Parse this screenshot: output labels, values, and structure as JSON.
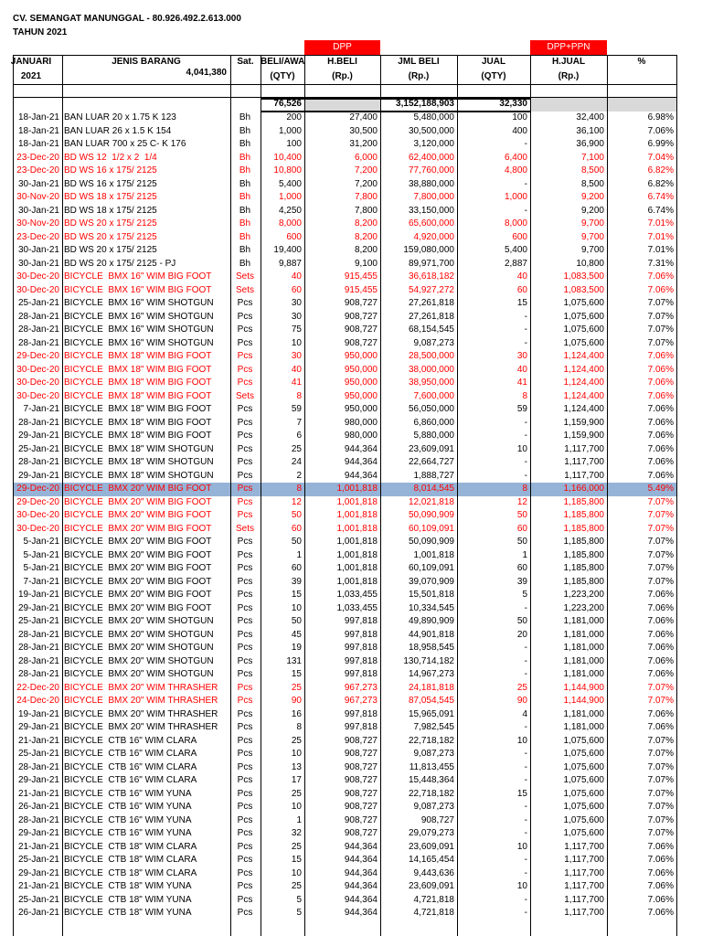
{
  "header": {
    "title": "CV. SEMANGAT MANUNGGAL - 80.926.492.2.613.000",
    "subtitle": "TAHUN 2021"
  },
  "table": {
    "group_labels": [
      {
        "text": "DPP",
        "color": "#ff0000"
      },
      {
        "text": "DPP+PPN",
        "color": "#ff0000"
      }
    ],
    "columns": [
      [
        "JANUARI",
        "2021"
      ],
      [
        "JENIS BARANG"
      ],
      [
        "Sat."
      ],
      [
        "BELI/AWAL",
        "(QTY)"
      ],
      [
        "H.BELI",
        "(Rp.)"
      ],
      [
        "JML BELI",
        "(Rp.)"
      ],
      [
        "JUAL",
        "(QTY)"
      ],
      [
        "H.JUAL",
        "(Rp.)"
      ],
      [
        "%"
      ]
    ],
    "header_note": "4,041,380",
    "totals": {
      "qty_buy": "76,526",
      "total_buy": "3,152,188,903",
      "qty_sell": "32,330"
    },
    "highlight_color": "#95b3d7",
    "rows": [
      {
        "cells": [
          "18-Jan-21",
          "BAN LUAR 20 x 1.75 K 123",
          "Bh",
          "200",
          "27,400",
          "5,480,000",
          "100",
          "32,400",
          "6.98%"
        ]
      },
      {
        "cells": [
          "18-Jan-21",
          "BAN LUAR 26 x 1.5 K 154",
          "Bh",
          "1,000",
          "30,500",
          "30,500,000",
          "400",
          "36,100",
          "7.06%"
        ]
      },
      {
        "cells": [
          "18-Jan-21",
          "BAN LUAR 700 x 25 C- K 176",
          "Bh",
          "100",
          "31,200",
          "3,120,000",
          "-",
          "36,900",
          "6.99%"
        ]
      },
      {
        "cells": [
          "23-Dec-20",
          "BD WS 12  1/2 x 2  1/4",
          "Bh",
          "10,400",
          "6,000",
          "62,400,000",
          "6,400",
          "7,100",
          "7.04%"
        ],
        "color": "#ff0000"
      },
      {
        "cells": [
          "23-Dec-20",
          "BD WS 16 x 175/ 2125",
          "Bh",
          "10,800",
          "7,200",
          "77,760,000",
          "4,800",
          "8,500",
          "6.82%"
        ],
        "color": "#ff0000"
      },
      {
        "cells": [
          "30-Jan-21",
          "BD WS 16 x 175/ 2125",
          "Bh",
          "5,400",
          "7,200",
          "38,880,000",
          "-",
          "8,500",
          "6.82%"
        ]
      },
      {
        "cells": [
          "30-Nov-20",
          "BD WS 18 x 175/ 2125",
          "Bh",
          "1,000",
          "7,800",
          "7,800,000",
          "1,000",
          "9,200",
          "6.74%"
        ],
        "color": "#ff0000"
      },
      {
        "cells": [
          "30-Jan-21",
          "BD WS 18 x 175/ 2125",
          "Bh",
          "4,250",
          "7,800",
          "33,150,000",
          "-",
          "9,200",
          "6.74%"
        ]
      },
      {
        "cells": [
          "30-Nov-20",
          "BD WS 20 x 175/ 2125",
          "Bh",
          "8,000",
          "8,200",
          "65,600,000",
          "8,000",
          "9,700",
          "7.01%"
        ],
        "color": "#ff0000"
      },
      {
        "cells": [
          "23-Dec-20",
          "BD WS 20 x 175/ 2125",
          "Bh",
          "600",
          "8,200",
          "4,920,000",
          "600",
          "9,700",
          "7.01%"
        ],
        "color": "#ff0000"
      },
      {
        "cells": [
          "30-Jan-21",
          "BD WS 20 x 175/ 2125",
          "Bh",
          "19,400",
          "8,200",
          "159,080,000",
          "5,400",
          "9,700",
          "7.01%"
        ]
      },
      {
        "cells": [
          "30-Jan-21",
          "BD WS 20 x 175/ 2125 - PJ",
          "Bh",
          "9,887",
          "9,100",
          "89,971,700",
          "2,887",
          "10,800",
          "7.31%"
        ]
      },
      {
        "cells": [
          "30-Dec-20",
          "BICYCLE  BMX 16\" WIM BIG FOOT",
          "Sets",
          "40",
          "915,455",
          "36,618,182",
          "40",
          "1,083,500",
          "7.06%"
        ],
        "color": "#ff0000"
      },
      {
        "cells": [
          "30-Dec-20",
          "BICYCLE  BMX 16\" WIM BIG FOOT",
          "Sets",
          "60",
          "915,455",
          "54,927,272",
          "60",
          "1,083,500",
          "7.06%"
        ],
        "color": "#ff0000"
      },
      {
        "cells": [
          "25-Jan-21",
          "BICYCLE  BMX 16\" WIM SHOTGUN",
          "Pcs",
          "30",
          "908,727",
          "27,261,818",
          "15",
          "1,075,600",
          "7.07%"
        ]
      },
      {
        "cells": [
          "28-Jan-21",
          "BICYCLE  BMX 16\" WIM SHOTGUN",
          "Pcs",
          "30",
          "908,727",
          "27,261,818",
          "-",
          "1,075,600",
          "7.07%"
        ]
      },
      {
        "cells": [
          "28-Jan-21",
          "BICYCLE  BMX 16\" WIM SHOTGUN",
          "Pcs",
          "75",
          "908,727",
          "68,154,545",
          "-",
          "1,075,600",
          "7.07%"
        ]
      },
      {
        "cells": [
          "28-Jan-21",
          "BICYCLE  BMX 16\" WIM SHOTGUN",
          "Pcs",
          "10",
          "908,727",
          "9,087,273",
          "-",
          "1,075,600",
          "7.07%"
        ]
      },
      {
        "cells": [
          "29-Dec-20",
          "BICYCLE  BMX 18\" WIM BIG FOOT",
          "Pcs",
          "30",
          "950,000",
          "28,500,000",
          "30",
          "1,124,400",
          "7.06%"
        ],
        "color": "#ff0000"
      },
      {
        "cells": [
          "30-Dec-20",
          "BICYCLE  BMX 18\" WIM BIG FOOT",
          "Pcs",
          "40",
          "950,000",
          "38,000,000",
          "40",
          "1,124,400",
          "7.06%"
        ],
        "color": "#ff0000"
      },
      {
        "cells": [
          "30-Dec-20",
          "BICYCLE  BMX 18\" WIM BIG FOOT",
          "Pcs",
          "41",
          "950,000",
          "38,950,000",
          "41",
          "1,124,400",
          "7.06%"
        ],
        "color": "#ff0000"
      },
      {
        "cells": [
          "30-Dec-20",
          "BICYCLE  BMX 18\" WIM BIG FOOT",
          "Sets",
          "8",
          "950,000",
          "7,600,000",
          "8",
          "1,124,400",
          "7.06%"
        ],
        "color": "#ff0000"
      },
      {
        "cells": [
          "7-Jan-21",
          "BICYCLE  BMX 18\" WIM BIG FOOT",
          "Pcs",
          "59",
          "950,000",
          "56,050,000",
          "59",
          "1,124,400",
          "7.06%"
        ]
      },
      {
        "cells": [
          "28-Jan-21",
          "BICYCLE  BMX 18\" WIM BIG FOOT",
          "Pcs",
          "7",
          "980,000",
          "6,860,000",
          "-",
          "1,159,900",
          "7.06%"
        ]
      },
      {
        "cells": [
          "29-Jan-21",
          "BICYCLE  BMX 18\" WIM BIG FOOT",
          "Pcs",
          "6",
          "980,000",
          "5,880,000",
          "-",
          "1,159,900",
          "7.06%"
        ]
      },
      {
        "cells": [
          "25-Jan-21",
          "BICYCLE  BMX 18\" WIM SHOTGUN",
          "Pcs",
          "25",
          "944,364",
          "23,609,091",
          "10",
          "1,117,700",
          "7.06%"
        ]
      },
      {
        "cells": [
          "28-Jan-21",
          "BICYCLE  BMX 18\" WIM SHOTGUN",
          "Pcs",
          "24",
          "944,364",
          "22,664,727",
          "-",
          "1,117,700",
          "7.06%"
        ]
      },
      {
        "cells": [
          "29-Jan-21",
          "BICYCLE  BMX 18\" WIM SHOTGUN",
          "Pcs",
          "2",
          "944,364",
          "1,888,727",
          "-",
          "1,117,700",
          "7.06%"
        ]
      },
      {
        "cells": [
          "29-Dec-20",
          "BICYCLE  BMX 20\" WIM BIG FOOT",
          "Pcs",
          "8",
          "1,001,818",
          "8,014,545",
          "8",
          "1,166,000",
          "5.49%"
        ],
        "color": "#ff0000",
        "highlight": true
      },
      {
        "cells": [
          "29-Dec-20",
          "BICYCLE  BMX 20\" WIM BIG FOOT",
          "Pcs",
          "12",
          "1,001,818",
          "12,021,818",
          "12",
          "1,185,800",
          "7.07%"
        ],
        "color": "#ff0000"
      },
      {
        "cells": [
          "30-Dec-20",
          "BICYCLE  BMX 20\" WIM BIG FOOT",
          "Pcs",
          "50",
          "1,001,818",
          "50,090,909",
          "50",
          "1,185,800",
          "7.07%"
        ],
        "color": "#ff0000"
      },
      {
        "cells": [
          "30-Dec-20",
          "BICYCLE  BMX 20\" WIM BIG FOOT",
          "Sets",
          "60",
          "1,001,818",
          "60,109,091",
          "60",
          "1,185,800",
          "7.07%"
        ],
        "color": "#ff0000"
      },
      {
        "cells": [
          "5-Jan-21",
          "BICYCLE  BMX 20\" WIM BIG FOOT",
          "Pcs",
          "50",
          "1,001,818",
          "50,090,909",
          "50",
          "1,185,800",
          "7.07%"
        ]
      },
      {
        "cells": [
          "5-Jan-21",
          "BICYCLE  BMX 20\" WIM BIG FOOT",
          "Pcs",
          "1",
          "1,001,818",
          "1,001,818",
          "1",
          "1,185,800",
          "7.07%"
        ]
      },
      {
        "cells": [
          "5-Jan-21",
          "BICYCLE  BMX 20\" WIM BIG FOOT",
          "Pcs",
          "60",
          "1,001,818",
          "60,109,091",
          "60",
          "1,185,800",
          "7.07%"
        ]
      },
      {
        "cells": [
          "7-Jan-21",
          "BICYCLE  BMX 20\" WIM BIG FOOT",
          "Pcs",
          "39",
          "1,001,818",
          "39,070,909",
          "39",
          "1,185,800",
          "7.07%"
        ]
      },
      {
        "cells": [
          "19-Jan-21",
          "BICYCLE  BMX 20\" WIM BIG FOOT",
          "Pcs",
          "15",
          "1,033,455",
          "15,501,818",
          "5",
          "1,223,200",
          "7.06%"
        ]
      },
      {
        "cells": [
          "29-Jan-21",
          "BICYCLE  BMX 20\" WIM BIG FOOT",
          "Pcs",
          "10",
          "1,033,455",
          "10,334,545",
          "-",
          "1,223,200",
          "7.06%"
        ]
      },
      {
        "cells": [
          "25-Jan-21",
          "BICYCLE  BMX 20\" WIM SHOTGUN",
          "Pcs",
          "50",
          "997,818",
          "49,890,909",
          "50",
          "1,181,000",
          "7.06%"
        ]
      },
      {
        "cells": [
          "28-Jan-21",
          "BICYCLE  BMX 20\" WIM SHOTGUN",
          "Pcs",
          "45",
          "997,818",
          "44,901,818",
          "20",
          "1,181,000",
          "7.06%"
        ]
      },
      {
        "cells": [
          "28-Jan-21",
          "BICYCLE  BMX 20\" WIM SHOTGUN",
          "Pcs",
          "19",
          "997,818",
          "18,958,545",
          "-",
          "1,181,000",
          "7.06%"
        ]
      },
      {
        "cells": [
          "28-Jan-21",
          "BICYCLE  BMX 20\" WIM SHOTGUN",
          "Pcs",
          "131",
          "997,818",
          "130,714,182",
          "-",
          "1,181,000",
          "7.06%"
        ]
      },
      {
        "cells": [
          "28-Jan-21",
          "BICYCLE  BMX 20\" WIM SHOTGUN",
          "Pcs",
          "15",
          "997,818",
          "14,967,273",
          "-",
          "1,181,000",
          "7.06%"
        ]
      },
      {
        "cells": [
          "22-Dec-20",
          "BICYCLE  BMX 20\" WIM THRASHER",
          "Pcs",
          "25",
          "967,273",
          "24,181,818",
          "25",
          "1,144,900",
          "7.07%"
        ],
        "color": "#ff0000"
      },
      {
        "cells": [
          "24-Dec-20",
          "BICYCLE  BMX 20\" WIM THRASHER",
          "Pcs",
          "90",
          "967,273",
          "87,054,545",
          "90",
          "1,144,900",
          "7.07%"
        ],
        "color": "#ff0000"
      },
      {
        "cells": [
          "19-Jan-21",
          "BICYCLE  BMX 20\" WIM THRASHER",
          "Pcs",
          "16",
          "997,818",
          "15,965,091",
          "4",
          "1,181,000",
          "7.06%"
        ]
      },
      {
        "cells": [
          "29-Jan-21",
          "BICYCLE  BMX 20\" WIM THRASHER",
          "Pcs",
          "8",
          "997,818",
          "7,982,545",
          "-",
          "1,181,000",
          "7.06%"
        ]
      },
      {
        "cells": [
          "21-Jan-21",
          "BICYCLE  CTB 16\" WIM CLARA",
          "Pcs",
          "25",
          "908,727",
          "22,718,182",
          "10",
          "1,075,600",
          "7.07%"
        ]
      },
      {
        "cells": [
          "25-Jan-21",
          "BICYCLE  CTB 16\" WIM CLARA",
          "Pcs",
          "10",
          "908,727",
          "9,087,273",
          "-",
          "1,075,600",
          "7.07%"
        ]
      },
      {
        "cells": [
          "28-Jan-21",
          "BICYCLE  CTB 16\" WIM CLARA",
          "Pcs",
          "13",
          "908,727",
          "11,813,455",
          "-",
          "1,075,600",
          "7.07%"
        ]
      },
      {
        "cells": [
          "29-Jan-21",
          "BICYCLE  CTB 16\" WIM CLARA",
          "Pcs",
          "17",
          "908,727",
          "15,448,364",
          "-",
          "1,075,600",
          "7.07%"
        ]
      },
      {
        "cells": [
          "21-Jan-21",
          "BICYCLE  CTB 16\" WIM YUNA",
          "Pcs",
          "25",
          "908,727",
          "22,718,182",
          "15",
          "1,075,600",
          "7.07%"
        ]
      },
      {
        "cells": [
          "26-Jan-21",
          "BICYCLE  CTB 16\" WIM YUNA",
          "Pcs",
          "10",
          "908,727",
          "9,087,273",
          "-",
          "1,075,600",
          "7.07%"
        ]
      },
      {
        "cells": [
          "28-Jan-21",
          "BICYCLE  CTB 16\" WIM YUNA",
          "Pcs",
          "1",
          "908,727",
          "908,727",
          "-",
          "1,075,600",
          "7.07%"
        ]
      },
      {
        "cells": [
          "29-Jan-21",
          "BICYCLE  CTB 16\" WIM YUNA",
          "Pcs",
          "32",
          "908,727",
          "29,079,273",
          "-",
          "1,075,600",
          "7.07%"
        ]
      },
      {
        "cells": [
          "21-Jan-21",
          "BICYCLE  CTB 18\" WIM CLARA",
          "Pcs",
          "25",
          "944,364",
          "23,609,091",
          "10",
          "1,117,700",
          "7.06%"
        ]
      },
      {
        "cells": [
          "25-Jan-21",
          "BICYCLE  CTB 18\" WIM CLARA",
          "Pcs",
          "15",
          "944,364",
          "14,165,454",
          "-",
          "1,117,700",
          "7.06%"
        ]
      },
      {
        "cells": [
          "29-Jan-21",
          "BICYCLE  CTB 18\" WIM CLARA",
          "Pcs",
          "10",
          "944,364",
          "9,443,636",
          "-",
          "1,117,700",
          "7.06%"
        ]
      },
      {
        "cells": [
          "21-Jan-21",
          "BICYCLE  CTB 18\" WIM YUNA",
          "Pcs",
          "25",
          "944,364",
          "23,609,091",
          "10",
          "1,117,700",
          "7.06%"
        ]
      },
      {
        "cells": [
          "25-Jan-21",
          "BICYCLE  CTB 18\" WIM YUNA",
          "Pcs",
          "5",
          "944,364",
          "4,721,818",
          "-",
          "1,117,700",
          "7.06%"
        ]
      },
      {
        "cells": [
          "26-Jan-21",
          "BICYCLE  CTB 18\" WIM YUNA",
          "Pcs",
          "5",
          "944,364",
          "4,721,818",
          "-",
          "1,117,700",
          "7.06%"
        ]
      }
    ]
  }
}
